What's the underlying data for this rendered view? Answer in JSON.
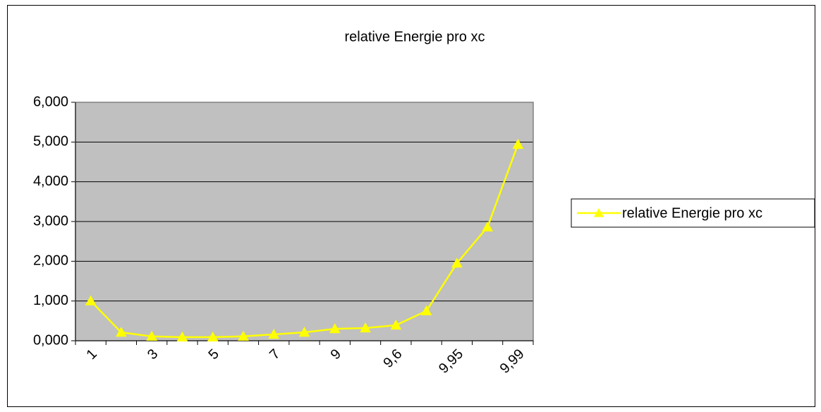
{
  "chart_data": {
    "type": "line",
    "title": "relative Energie pro xc",
    "categories": [
      "1",
      null,
      "3",
      null,
      "5",
      null,
      "7",
      null,
      "9",
      null,
      "9,6",
      null,
      "9,95",
      null,
      "9,99"
    ],
    "series": [
      {
        "name": "relative Energie pro xc",
        "color": "#ffff00",
        "values": [
          1.0,
          0.21,
          0.11,
          0.09,
          0.09,
          0.11,
          0.16,
          0.21,
          0.3,
          0.32,
          0.39,
          0.75,
          1.95,
          2.86,
          4.94
        ]
      }
    ],
    "ylim": [
      0,
      6
    ],
    "yticks": [
      {
        "value": 0,
        "label": "0,000"
      },
      {
        "value": 1,
        "label": "1,000"
      },
      {
        "value": 2,
        "label": "2,000"
      },
      {
        "value": 3,
        "label": "3,000"
      },
      {
        "value": 4,
        "label": "4,000"
      },
      {
        "value": 5,
        "label": "5,000"
      },
      {
        "value": 6,
        "label": "6,000"
      }
    ],
    "grid": true,
    "plot_background": "#c0c0c0",
    "legend": "right"
  }
}
